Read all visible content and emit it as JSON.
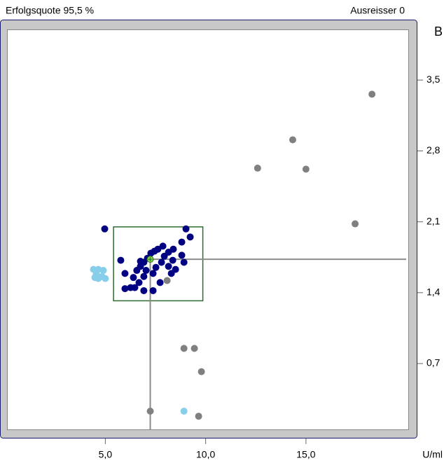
{
  "chart_data": {
    "type": "scatter",
    "title": "Erfolgsquote 95,5 %",
    "subtitle": "Ausreisser 0",
    "y_label": "B",
    "x_label": "U/ml",
    "xlim": [
      0.1,
      20.1
    ],
    "ylim": [
      0.05,
      4.0
    ],
    "xticks": [
      {
        "value": 5,
        "label": "5,0"
      },
      {
        "value": 10,
        "label": "10,0"
      },
      {
        "value": 15,
        "label": "15,0"
      }
    ],
    "yticks": [
      {
        "value": 0.7,
        "label": "0,7"
      },
      {
        "value": 1.4,
        "label": "1,4"
      },
      {
        "value": 2.1,
        "label": "2,1"
      },
      {
        "value": 2.8,
        "label": "2,8"
      },
      {
        "value": 3.5,
        "label": "3,5"
      }
    ],
    "target": {
      "x": 7.24,
      "y": 1.73,
      "box_x": [
        5.41,
        9.86
      ],
      "box_y": [
        1.32,
        2.05
      ],
      "color": "#2e6b2e",
      "center_color": "#7fd43a",
      "line_color": "#8c8c8c"
    },
    "series": [
      {
        "color": "#808080",
        "x": [
          18.29,
          14.34,
          12.59,
          15.0,
          17.45,
          8.08,
          8.92,
          9.44,
          9.79,
          7.24,
          9.65
        ],
        "values": [
          3.36,
          2.91,
          2.63,
          2.62,
          2.08,
          1.52,
          0.85,
          0.85,
          0.62,
          0.23,
          0.18
        ]
      },
      {
        "color": "#87ceeb",
        "x": [
          8.92,
          4.41,
          4.65,
          4.9,
          4.55,
          4.83,
          5.0,
          4.65,
          4.48
        ],
        "values": [
          0.23,
          1.63,
          1.63,
          1.62,
          1.58,
          1.56,
          1.54,
          1.54,
          1.55
        ]
      },
      {
        "color": "#000080",
        "x": [
          4.97,
          9.02,
          5.77,
          5.98,
          5.98,
          6.26,
          6.4,
          6.57,
          6.75,
          6.92,
          7.1,
          7.27,
          7.45,
          7.62,
          7.87,
          8.15,
          8.39,
          8.81,
          9.23,
          8.81,
          7.94,
          7.8,
          7.52,
          7.38,
          6.92,
          6.68,
          6.47,
          6.92,
          7.38,
          7.73,
          8.15,
          8.36,
          8.5,
          6.75,
          7.03,
          8.29,
          8.92
        ],
        "values": [
          2.03,
          2.03,
          1.72,
          1.59,
          1.44,
          1.45,
          1.55,
          1.62,
          1.66,
          1.7,
          1.74,
          1.79,
          1.81,
          1.83,
          1.86,
          1.8,
          1.83,
          1.77,
          1.95,
          1.9,
          1.76,
          1.7,
          1.65,
          1.59,
          1.56,
          1.5,
          1.45,
          1.42,
          1.42,
          1.5,
          1.66,
          1.72,
          1.63,
          1.71,
          1.62,
          1.59,
          1.7
        ]
      }
    ]
  }
}
